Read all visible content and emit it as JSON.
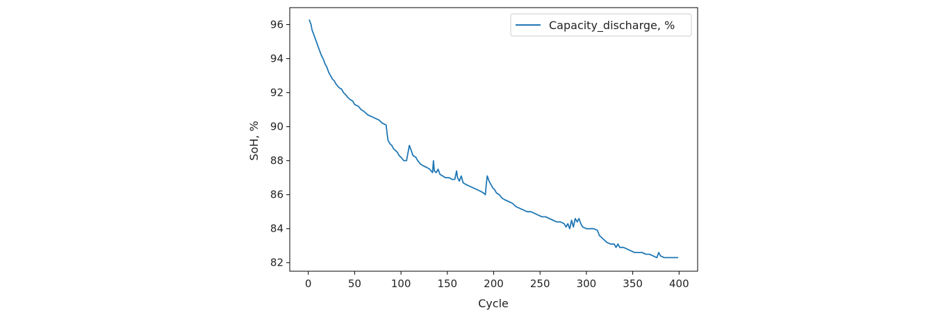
{
  "chart_data": {
    "type": "line",
    "title": "",
    "xlabel": "Cycle",
    "ylabel": "SoH, %",
    "xlim": [
      -20,
      420
    ],
    "ylim": [
      81.5,
      97.0
    ],
    "xticks": [
      0,
      50,
      100,
      150,
      200,
      250,
      300,
      350,
      400
    ],
    "yticks": [
      82,
      84,
      86,
      88,
      90,
      92,
      94,
      96
    ],
    "grid": false,
    "legend_position": "top-right",
    "series": [
      {
        "name": "Capacity_discharge, %",
        "color": "#1f77b4",
        "points": [
          [
            1,
            96.3
          ],
          [
            3,
            96.0
          ],
          [
            4,
            95.7
          ],
          [
            6,
            95.4
          ],
          [
            8,
            95.1
          ],
          [
            10,
            94.8
          ],
          [
            12,
            94.5
          ],
          [
            14,
            94.2
          ],
          [
            16,
            94.0
          ],
          [
            18,
            93.7
          ],
          [
            20,
            93.5
          ],
          [
            22,
            93.2
          ],
          [
            24,
            93.0
          ],
          [
            26,
            92.8
          ],
          [
            28,
            92.7
          ],
          [
            30,
            92.5
          ],
          [
            33,
            92.3
          ],
          [
            36,
            92.2
          ],
          [
            38,
            92.0
          ],
          [
            40,
            91.9
          ],
          [
            43,
            91.7
          ],
          [
            45,
            91.6
          ],
          [
            48,
            91.5
          ],
          [
            50,
            91.3
          ],
          [
            54,
            91.2
          ],
          [
            57,
            91.0
          ],
          [
            60,
            90.9
          ],
          [
            64,
            90.7
          ],
          [
            68,
            90.6
          ],
          [
            72,
            90.5
          ],
          [
            76,
            90.4
          ],
          [
            80,
            90.2
          ],
          [
            84,
            90.1
          ],
          [
            85,
            89.6
          ],
          [
            86,
            89.2
          ],
          [
            88,
            89.0
          ],
          [
            90,
            88.9
          ],
          [
            92,
            88.7
          ],
          [
            94,
            88.6
          ],
          [
            96,
            88.5
          ],
          [
            98,
            88.3
          ],
          [
            100,
            88.2
          ],
          [
            103,
            88.0
          ],
          [
            106,
            88.0
          ],
          [
            108,
            88.6
          ],
          [
            109,
            88.9
          ],
          [
            111,
            88.6
          ],
          [
            113,
            88.3
          ],
          [
            116,
            88.2
          ],
          [
            118,
            88.0
          ],
          [
            121,
            87.8
          ],
          [
            124,
            87.7
          ],
          [
            128,
            87.6
          ],
          [
            131,
            87.5
          ],
          [
            134,
            87.3
          ],
          [
            135,
            88.0
          ],
          [
            136,
            87.4
          ],
          [
            138,
            87.3
          ],
          [
            140,
            87.5
          ],
          [
            142,
            87.2
          ],
          [
            145,
            87.1
          ],
          [
            148,
            87.0
          ],
          [
            152,
            87.0
          ],
          [
            155,
            86.9
          ],
          [
            158,
            86.9
          ],
          [
            160,
            87.4
          ],
          [
            161,
            87.0
          ],
          [
            163,
            86.8
          ],
          [
            165,
            87.1
          ],
          [
            167,
            86.7
          ],
          [
            170,
            86.6
          ],
          [
            174,
            86.5
          ],
          [
            178,
            86.4
          ],
          [
            182,
            86.3
          ],
          [
            186,
            86.2
          ],
          [
            189,
            86.1
          ],
          [
            191,
            86.0
          ],
          [
            192,
            86.6
          ],
          [
            193,
            87.1
          ],
          [
            195,
            86.8
          ],
          [
            197,
            86.6
          ],
          [
            199,
            86.4
          ],
          [
            201,
            86.3
          ],
          [
            203,
            86.1
          ],
          [
            206,
            86.0
          ],
          [
            209,
            85.8
          ],
          [
            212,
            85.7
          ],
          [
            216,
            85.6
          ],
          [
            220,
            85.5
          ],
          [
            224,
            85.3
          ],
          [
            228,
            85.2
          ],
          [
            232,
            85.1
          ],
          [
            236,
            85.0
          ],
          [
            240,
            85.0
          ],
          [
            244,
            84.9
          ],
          [
            248,
            84.8
          ],
          [
            252,
            84.7
          ],
          [
            256,
            84.7
          ],
          [
            260,
            84.6
          ],
          [
            264,
            84.5
          ],
          [
            268,
            84.4
          ],
          [
            272,
            84.4
          ],
          [
            276,
            84.3
          ],
          [
            278,
            84.1
          ],
          [
            280,
            84.3
          ],
          [
            282,
            84.0
          ],
          [
            284,
            84.5
          ],
          [
            286,
            84.1
          ],
          [
            288,
            84.6
          ],
          [
            290,
            84.4
          ],
          [
            292,
            84.6
          ],
          [
            294,
            84.3
          ],
          [
            296,
            84.1
          ],
          [
            300,
            84.0
          ],
          [
            304,
            84.0
          ],
          [
            308,
            84.0
          ],
          [
            312,
            83.9
          ],
          [
            314,
            83.6
          ],
          [
            316,
            83.5
          ],
          [
            318,
            83.4
          ],
          [
            322,
            83.2
          ],
          [
            326,
            83.1
          ],
          [
            330,
            83.1
          ],
          [
            332,
            82.9
          ],
          [
            334,
            83.1
          ],
          [
            336,
            82.9
          ],
          [
            340,
            82.9
          ],
          [
            344,
            82.8
          ],
          [
            348,
            82.7
          ],
          [
            352,
            82.6
          ],
          [
            356,
            82.6
          ],
          [
            360,
            82.6
          ],
          [
            364,
            82.5
          ],
          [
            368,
            82.5
          ],
          [
            372,
            82.4
          ],
          [
            376,
            82.3
          ],
          [
            378,
            82.6
          ],
          [
            380,
            82.4
          ],
          [
            384,
            82.3
          ],
          [
            388,
            82.3
          ],
          [
            392,
            82.3
          ],
          [
            396,
            82.3
          ],
          [
            399,
            82.3
          ]
        ]
      }
    ]
  }
}
